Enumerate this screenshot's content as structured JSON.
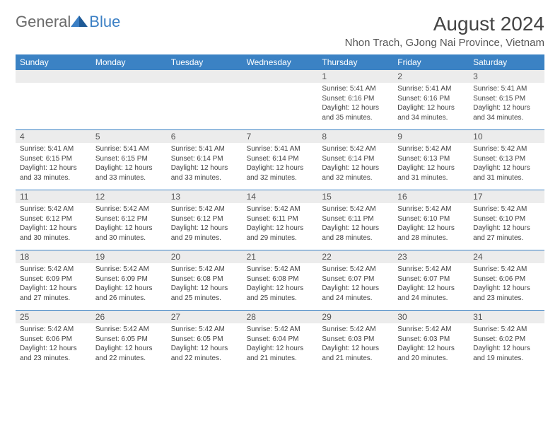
{
  "logo": {
    "general": "General",
    "blue": "Blue"
  },
  "title": "August 2024",
  "location": "Nhon Trach, GJong Nai Province, Vietnam",
  "colors": {
    "header_bg": "#3b82c4",
    "header_text": "#ffffff",
    "daynum_bg": "#ececec",
    "border": "#3b82c4",
    "logo_gray": "#6a6a6a",
    "logo_blue": "#3b7fc4"
  },
  "dayNames": [
    "Sunday",
    "Monday",
    "Tuesday",
    "Wednesday",
    "Thursday",
    "Friday",
    "Saturday"
  ],
  "weeks": [
    [
      {
        "empty": true
      },
      {
        "empty": true
      },
      {
        "empty": true
      },
      {
        "empty": true
      },
      {
        "num": "1",
        "sunrise": "Sunrise: 5:41 AM",
        "sunset": "Sunset: 6:16 PM",
        "daylight": "Daylight: 12 hours and 35 minutes."
      },
      {
        "num": "2",
        "sunrise": "Sunrise: 5:41 AM",
        "sunset": "Sunset: 6:16 PM",
        "daylight": "Daylight: 12 hours and 34 minutes."
      },
      {
        "num": "3",
        "sunrise": "Sunrise: 5:41 AM",
        "sunset": "Sunset: 6:15 PM",
        "daylight": "Daylight: 12 hours and 34 minutes."
      }
    ],
    [
      {
        "num": "4",
        "sunrise": "Sunrise: 5:41 AM",
        "sunset": "Sunset: 6:15 PM",
        "daylight": "Daylight: 12 hours and 33 minutes."
      },
      {
        "num": "5",
        "sunrise": "Sunrise: 5:41 AM",
        "sunset": "Sunset: 6:15 PM",
        "daylight": "Daylight: 12 hours and 33 minutes."
      },
      {
        "num": "6",
        "sunrise": "Sunrise: 5:41 AM",
        "sunset": "Sunset: 6:14 PM",
        "daylight": "Daylight: 12 hours and 33 minutes."
      },
      {
        "num": "7",
        "sunrise": "Sunrise: 5:41 AM",
        "sunset": "Sunset: 6:14 PM",
        "daylight": "Daylight: 12 hours and 32 minutes."
      },
      {
        "num": "8",
        "sunrise": "Sunrise: 5:42 AM",
        "sunset": "Sunset: 6:14 PM",
        "daylight": "Daylight: 12 hours and 32 minutes."
      },
      {
        "num": "9",
        "sunrise": "Sunrise: 5:42 AM",
        "sunset": "Sunset: 6:13 PM",
        "daylight": "Daylight: 12 hours and 31 minutes."
      },
      {
        "num": "10",
        "sunrise": "Sunrise: 5:42 AM",
        "sunset": "Sunset: 6:13 PM",
        "daylight": "Daylight: 12 hours and 31 minutes."
      }
    ],
    [
      {
        "num": "11",
        "sunrise": "Sunrise: 5:42 AM",
        "sunset": "Sunset: 6:12 PM",
        "daylight": "Daylight: 12 hours and 30 minutes."
      },
      {
        "num": "12",
        "sunrise": "Sunrise: 5:42 AM",
        "sunset": "Sunset: 6:12 PM",
        "daylight": "Daylight: 12 hours and 30 minutes."
      },
      {
        "num": "13",
        "sunrise": "Sunrise: 5:42 AM",
        "sunset": "Sunset: 6:12 PM",
        "daylight": "Daylight: 12 hours and 29 minutes."
      },
      {
        "num": "14",
        "sunrise": "Sunrise: 5:42 AM",
        "sunset": "Sunset: 6:11 PM",
        "daylight": "Daylight: 12 hours and 29 minutes."
      },
      {
        "num": "15",
        "sunrise": "Sunrise: 5:42 AM",
        "sunset": "Sunset: 6:11 PM",
        "daylight": "Daylight: 12 hours and 28 minutes."
      },
      {
        "num": "16",
        "sunrise": "Sunrise: 5:42 AM",
        "sunset": "Sunset: 6:10 PM",
        "daylight": "Daylight: 12 hours and 28 minutes."
      },
      {
        "num": "17",
        "sunrise": "Sunrise: 5:42 AM",
        "sunset": "Sunset: 6:10 PM",
        "daylight": "Daylight: 12 hours and 27 minutes."
      }
    ],
    [
      {
        "num": "18",
        "sunrise": "Sunrise: 5:42 AM",
        "sunset": "Sunset: 6:09 PM",
        "daylight": "Daylight: 12 hours and 27 minutes."
      },
      {
        "num": "19",
        "sunrise": "Sunrise: 5:42 AM",
        "sunset": "Sunset: 6:09 PM",
        "daylight": "Daylight: 12 hours and 26 minutes."
      },
      {
        "num": "20",
        "sunrise": "Sunrise: 5:42 AM",
        "sunset": "Sunset: 6:08 PM",
        "daylight": "Daylight: 12 hours and 25 minutes."
      },
      {
        "num": "21",
        "sunrise": "Sunrise: 5:42 AM",
        "sunset": "Sunset: 6:08 PM",
        "daylight": "Daylight: 12 hours and 25 minutes."
      },
      {
        "num": "22",
        "sunrise": "Sunrise: 5:42 AM",
        "sunset": "Sunset: 6:07 PM",
        "daylight": "Daylight: 12 hours and 24 minutes."
      },
      {
        "num": "23",
        "sunrise": "Sunrise: 5:42 AM",
        "sunset": "Sunset: 6:07 PM",
        "daylight": "Daylight: 12 hours and 24 minutes."
      },
      {
        "num": "24",
        "sunrise": "Sunrise: 5:42 AM",
        "sunset": "Sunset: 6:06 PM",
        "daylight": "Daylight: 12 hours and 23 minutes."
      }
    ],
    [
      {
        "num": "25",
        "sunrise": "Sunrise: 5:42 AM",
        "sunset": "Sunset: 6:06 PM",
        "daylight": "Daylight: 12 hours and 23 minutes."
      },
      {
        "num": "26",
        "sunrise": "Sunrise: 5:42 AM",
        "sunset": "Sunset: 6:05 PM",
        "daylight": "Daylight: 12 hours and 22 minutes."
      },
      {
        "num": "27",
        "sunrise": "Sunrise: 5:42 AM",
        "sunset": "Sunset: 6:05 PM",
        "daylight": "Daylight: 12 hours and 22 minutes."
      },
      {
        "num": "28",
        "sunrise": "Sunrise: 5:42 AM",
        "sunset": "Sunset: 6:04 PM",
        "daylight": "Daylight: 12 hours and 21 minutes."
      },
      {
        "num": "29",
        "sunrise": "Sunrise: 5:42 AM",
        "sunset": "Sunset: 6:03 PM",
        "daylight": "Daylight: 12 hours and 21 minutes."
      },
      {
        "num": "30",
        "sunrise": "Sunrise: 5:42 AM",
        "sunset": "Sunset: 6:03 PM",
        "daylight": "Daylight: 12 hours and 20 minutes."
      },
      {
        "num": "31",
        "sunrise": "Sunrise: 5:42 AM",
        "sunset": "Sunset: 6:02 PM",
        "daylight": "Daylight: 12 hours and 19 minutes."
      }
    ]
  ]
}
